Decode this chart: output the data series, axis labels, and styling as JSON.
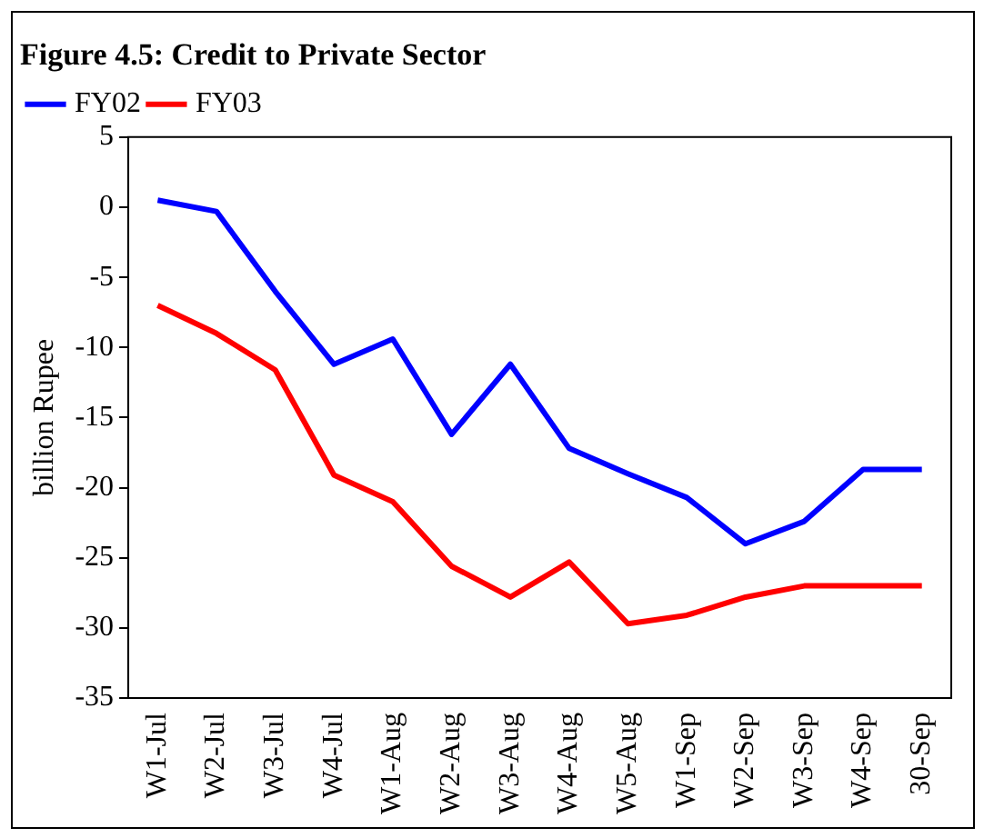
{
  "chart_data": {
    "type": "line",
    "title": "Figure 4.5: Credit to Private Sector",
    "ylabel": "billion Rupee",
    "categories": [
      "W1-Jul",
      "W2-Jul",
      "W3-Jul",
      "W4-Jul",
      "W1-Aug",
      "W2-Aug",
      "W3-Aug",
      "W4-Aug",
      "W5-Aug",
      "W1-Sep",
      "W2-Sep",
      "W3-Sep",
      "W4-Sep",
      "30-Sep"
    ],
    "series": [
      {
        "name": "FY02",
        "color": "#0000ff",
        "values": [
          0.5,
          -0.3,
          -6,
          -11.2,
          -9.4,
          -16.2,
          -11.2,
          -17.2,
          -19,
          -20.7,
          -24,
          -22.4,
          -18.7,
          -18.7
        ]
      },
      {
        "name": "FY03",
        "color": "#ff0000",
        "values": [
          -7,
          -9,
          -11.6,
          -19.1,
          -21,
          -25.6,
          -27.8,
          -25.3,
          -29.7,
          -29.1,
          -27.8,
          -27,
          -27,
          -27
        ]
      }
    ],
    "ylim": [
      -35,
      5
    ],
    "yticks": [
      -35,
      -30,
      -25,
      -20,
      -15,
      -10,
      -5,
      0,
      5
    ],
    "grid": false,
    "legend": "top left",
    "marker": "none",
    "line_style": "solid"
  }
}
